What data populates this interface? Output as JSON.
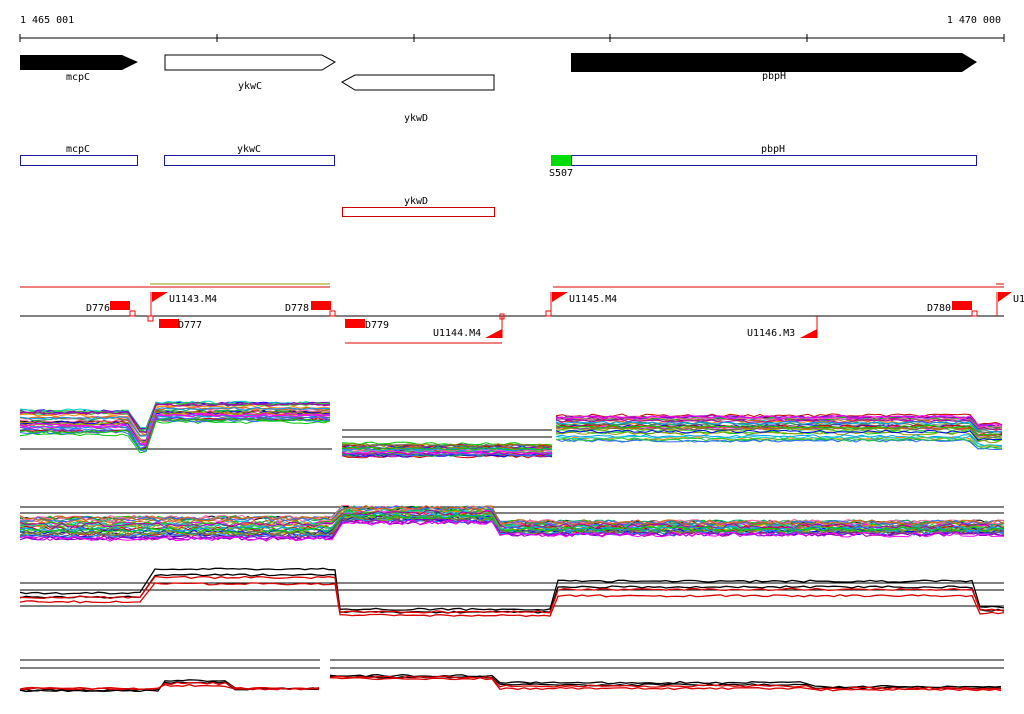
{
  "ruler": {
    "start_label": "1 465 001",
    "end_label": "1 470 000"
  },
  "genes": [
    {
      "name": "mcpC",
      "strand": "+",
      "style": "filled"
    },
    {
      "name": "ykwC",
      "strand": "+",
      "style": "open"
    },
    {
      "name": "ykwD",
      "strand": "-",
      "style": "open"
    },
    {
      "name": "pbpH",
      "strand": "+",
      "style": "filled"
    }
  ],
  "transcripts": [
    {
      "name": "mcpC",
      "color": "#1a1aa6"
    },
    {
      "name": "ykwC",
      "color": "#1a1aa6"
    },
    {
      "name": "pbpH",
      "color": "#1a1aa6"
    },
    {
      "name": "ykwD",
      "color": "#cc0000"
    }
  ],
  "sigma_site": {
    "label": "S507",
    "color": "#00dd00"
  },
  "features": {
    "forward": [
      "D776",
      "U1143.M4",
      "D778",
      "U1145.M4",
      "D780",
      "U1"
    ],
    "reverse": [
      "D777",
      "D779",
      "U1144.M4",
      "U1146.M3"
    ]
  },
  "colors": {
    "feature_red": "#ff0000",
    "line_red": "#dd0000",
    "line_black": "#000000",
    "palette": [
      "#ff00ff",
      "#00cc00",
      "#0000ff",
      "#ff8800",
      "#00cccc",
      "#cc0000",
      "#999900",
      "#8800cc",
      "#00aa66",
      "#ff66aa",
      "#666666",
      "#3366ff",
      "#cc6600",
      "#33cc33",
      "#aa00aa",
      "#0099ff"
    ]
  }
}
